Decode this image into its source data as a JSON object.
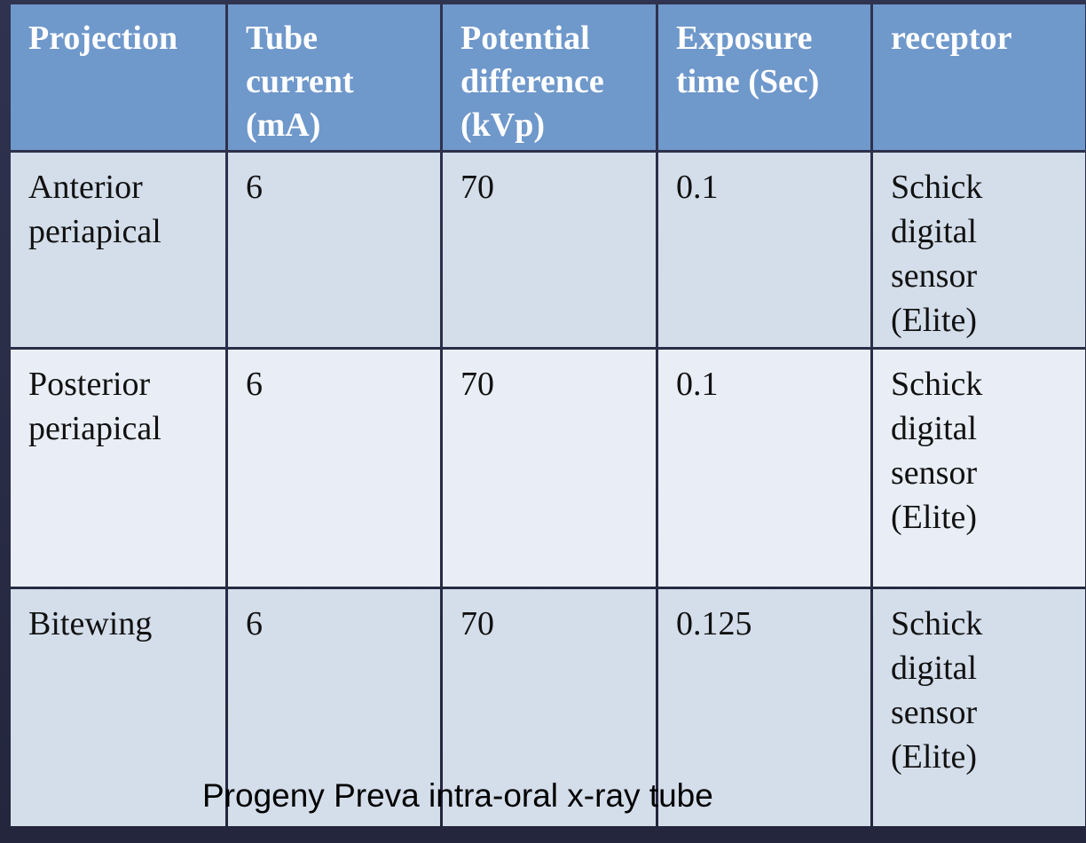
{
  "table": {
    "header": [
      "Projection",
      "Tube current (mA)",
      "Potential difference (kVp)",
      "Exposure time (Sec)",
      "receptor"
    ],
    "rows": [
      [
        "Anterior periapical",
        "6",
        "70",
        "0.1",
        "Schick digital sensor (Elite)"
      ],
      [
        "Posterior periapical",
        "6",
        "70",
        "0.1",
        "Schick digital sensor (Elite)"
      ],
      [
        "Bitewing",
        "6",
        "70",
        "0.125",
        "Schick digital sensor (Elite)"
      ]
    ],
    "caption": "Progeny Preva intra-oral x-ray tube"
  }
}
